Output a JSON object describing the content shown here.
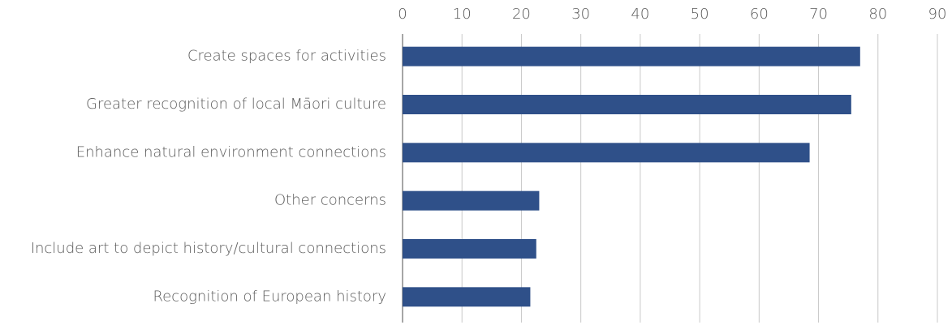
{
  "chart_data": {
    "type": "bar",
    "orientation": "horizontal",
    "categories": [
      "Create spaces for activities",
      "Greater recognition of local Māori culture",
      "Enhance natural environment connections",
      "Other concerns",
      "Include art to depict history/cultural connections",
      "Recognition of European history"
    ],
    "values": [
      77,
      75.5,
      68.5,
      23,
      22.5,
      21.5
    ],
    "color": "#2f5089",
    "xlim": [
      0,
      90
    ],
    "xticks": [
      0,
      10,
      20,
      30,
      40,
      50,
      60,
      70,
      80,
      90
    ],
    "grid": true
  }
}
